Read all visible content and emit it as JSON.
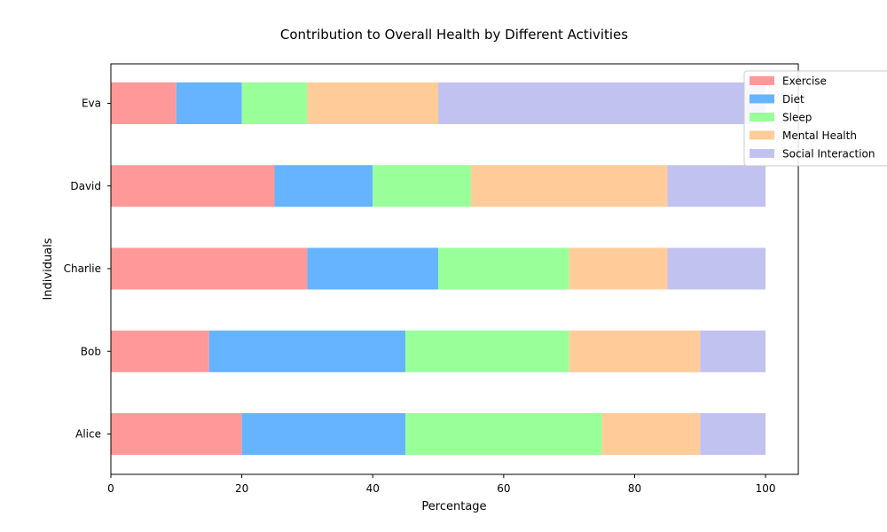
{
  "chart_data": {
    "type": "bar",
    "orientation": "horizontal",
    "stacked": true,
    "title": "Contribution to Overall Health by Different Activities",
    "xlabel": "Percentage",
    "ylabel": "Individuals",
    "xlim": [
      0,
      105
    ],
    "x_ticks": [
      "0",
      "20",
      "40",
      "60",
      "80",
      "100"
    ],
    "grid": false,
    "legend_position": "top-right",
    "categories": [
      "Alice",
      "Bob",
      "Charlie",
      "David",
      "Eva"
    ],
    "series": [
      {
        "name": "Exercise",
        "color": "#ff9999",
        "values": [
          20,
          15,
          30,
          25,
          10
        ]
      },
      {
        "name": "Diet",
        "color": "#66b3ff",
        "values": [
          25,
          30,
          20,
          15,
          10
        ]
      },
      {
        "name": "Sleep",
        "color": "#99ff99",
        "values": [
          30,
          25,
          20,
          15,
          10
        ]
      },
      {
        "name": "Mental Health",
        "color": "#ffcc99",
        "values": [
          15,
          20,
          15,
          30,
          20
        ]
      },
      {
        "name": "Social Interaction",
        "color": "#c2c2f0",
        "values": [
          10,
          10,
          15,
          15,
          50
        ]
      }
    ]
  }
}
